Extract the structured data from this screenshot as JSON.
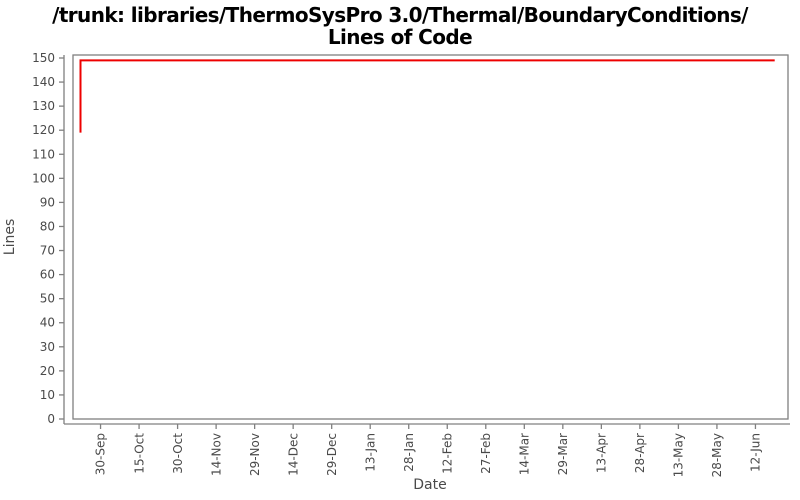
{
  "chart_data": {
    "type": "line",
    "title": "/trunk: libraries/ThermoSysPro 3.0/Thermal/BoundaryConditions/ Lines of Code",
    "title_line1": "/trunk: libraries/ThermoSysPro 3.0/Thermal/BoundaryConditions/",
    "title_line2": "Lines of Code",
    "xlabel": "Date",
    "ylabel": "Lines",
    "ylim": [
      0,
      150
    ],
    "y_ticks": [
      0,
      10,
      20,
      30,
      40,
      50,
      60,
      70,
      80,
      90,
      100,
      110,
      120,
      130,
      140,
      150
    ],
    "x_tick_labels": [
      "30-Sep",
      "15-Oct",
      "30-Oct",
      "14-Nov",
      "29-Nov",
      "14-Dec",
      "29-Dec",
      "13-Jan",
      "28-Jan",
      "12-Feb",
      "27-Feb",
      "14-Mar",
      "29-Mar",
      "13-Apr",
      "28-Apr",
      "13-May",
      "28-May",
      "12-Jun"
    ],
    "x_tick_interval_days": 15,
    "xlim_tick_units": [
      -0.715,
      17.845
    ],
    "grid": false,
    "legend": "none",
    "series": [
      {
        "name": "Lines of Code",
        "color": "#ee0000",
        "points_tick_units": [
          {
            "x": -0.52,
            "y": 119
          },
          {
            "x": -0.52,
            "y": 149
          },
          {
            "x": 17.5,
            "y": 149
          }
        ]
      }
    ],
    "colors": {
      "title": "#000000",
      "tick_label": "#4a4a4a",
      "axis": "#808080",
      "background": "#ffffff"
    }
  }
}
